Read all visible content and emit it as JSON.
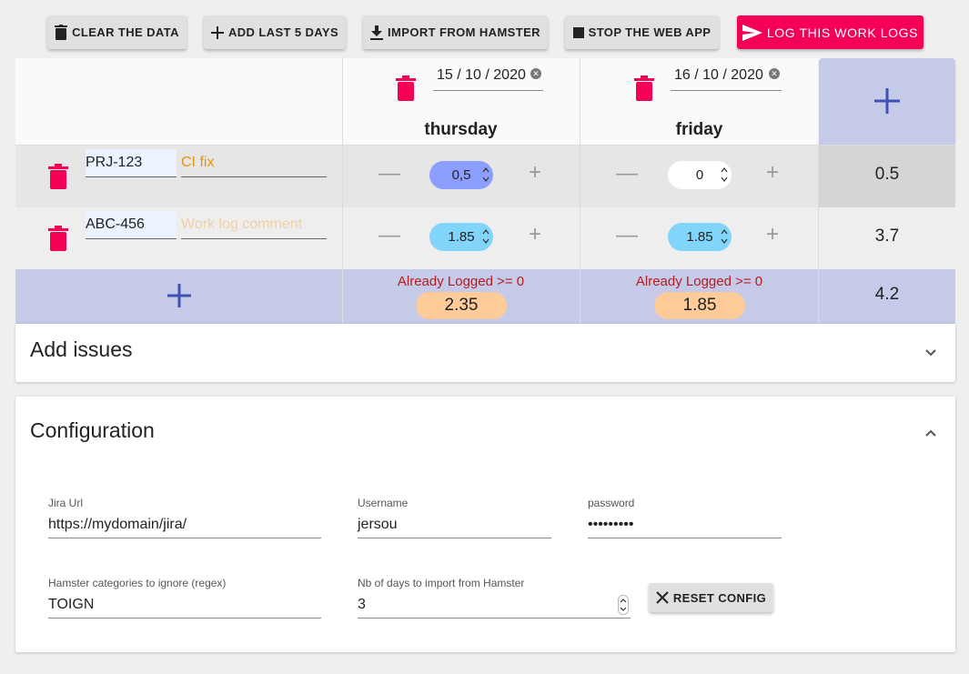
{
  "toolbar": {
    "clear_label": "CLEAR THE DATA",
    "add5_label": "ADD LAST 5 DAYS",
    "import_label": "IMPORT FROM HAMSTER",
    "stop_label": "STOP THE WEB APP",
    "log_label": "LOG THIS WORK LOGS"
  },
  "days": [
    {
      "date": "15 / 10 / 2020",
      "name": "thursday",
      "already_logged": "Already Logged >= 0",
      "total": "2.35"
    },
    {
      "date": "16 / 10 / 2020",
      "name": "friday",
      "already_logged": "Already Logged >= 0",
      "total": "1.85"
    }
  ],
  "issues": [
    {
      "key": "PRJ-123",
      "comment": "CI fix",
      "comment_placeholder": "",
      "values": [
        "0,5",
        "0"
      ],
      "total": "0.5"
    },
    {
      "key": "ABC-456",
      "comment": "",
      "comment_placeholder": "Work log comment",
      "values": [
        "1.85",
        "1.85"
      ],
      "total": "3.7"
    }
  ],
  "grand_total": "4.2",
  "add_issues_panel": {
    "title": "Add issues"
  },
  "config": {
    "title": "Configuration",
    "jira_url_label": "Jira Url",
    "jira_url_value": "https://mydomain/jira/",
    "username_label": "Username",
    "username_value": "jersou",
    "password_label": "password",
    "password_value": "•••••••••",
    "hamster_ignore_label": "Hamster categories to ignore (regex)",
    "hamster_ignore_value": "TOIGN",
    "nb_days_label": "Nb of days to import from Hamster",
    "nb_days_value": "3",
    "reset_label": "RESET CONFIG"
  },
  "colors": {
    "accent": "#f50057",
    "header_blue": "#c5cae9",
    "plus_blue": "#3f51b5",
    "pill_purple": "#8c9eff",
    "pill_light_blue": "#81d4fa",
    "pill_orange": "#ffcc99",
    "already_logged_red": "#b71c1c"
  }
}
